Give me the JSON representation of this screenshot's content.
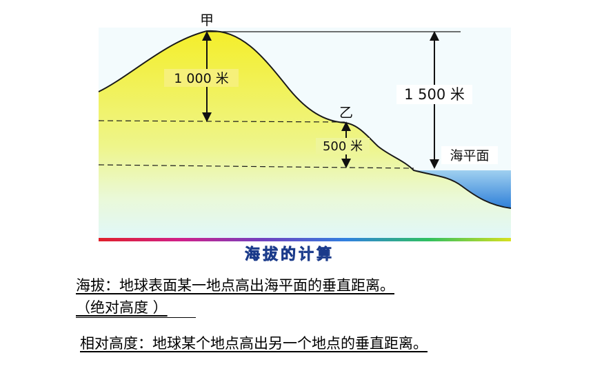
{
  "diagram": {
    "label_peak_jia": "甲",
    "label_point_yi": "乙",
    "label_1000m": "1 000 米",
    "label_1500m": "1 500 米",
    "label_500m": "500 米",
    "label_sea_level": "海平面",
    "caption": "海拔的计算",
    "colors": {
      "land_top": "#f4ee2a",
      "land_bottom": "#e0f7fb",
      "sea": "#3f8fe0",
      "outline": "#1a1a1a"
    }
  },
  "definitions": {
    "altitude": "海拔：地球表面某一地点高出海平面的垂直距离。",
    "altitude_note": "（绝对高度 ）",
    "relative_height": "相对高度：地球某个地点高出另一个地点的垂直距离。"
  }
}
